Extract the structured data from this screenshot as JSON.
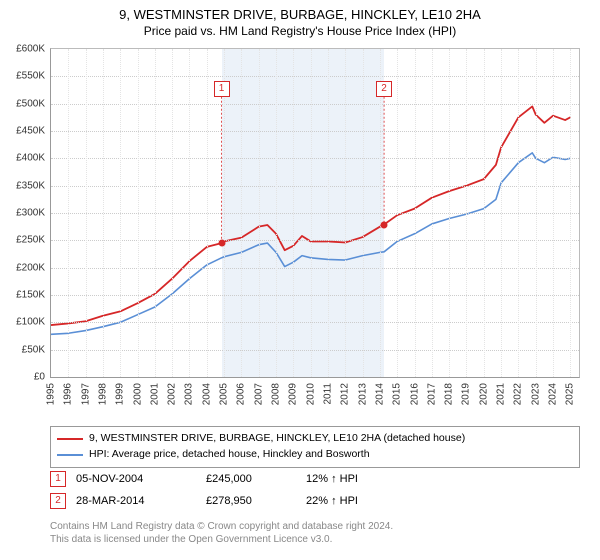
{
  "title": "9, WESTMINSTER DRIVE, BURBAGE, HINCKLEY, LE10 2HA",
  "subtitle": "Price paid vs. HM Land Registry's House Price Index (HPI)",
  "chart": {
    "type": "line",
    "background_color": "#ffffff",
    "grid_color": "#cccccc",
    "shaded_fill": "rgba(70,130,200,0.10)",
    "shaded_start": 2004.85,
    "shaded_end": 2014.24,
    "xlim": [
      1995,
      2025.5
    ],
    "ylim": [
      0,
      600000
    ],
    "ytick_step": 50000,
    "yticks": [
      {
        "v": 0,
        "label": "£0"
      },
      {
        "v": 50000,
        "label": "£50K"
      },
      {
        "v": 100000,
        "label": "£100K"
      },
      {
        "v": 150000,
        "label": "£150K"
      },
      {
        "v": 200000,
        "label": "£200K"
      },
      {
        "v": 250000,
        "label": "£250K"
      },
      {
        "v": 300000,
        "label": "£300K"
      },
      {
        "v": 350000,
        "label": "£350K"
      },
      {
        "v": 400000,
        "label": "£400K"
      },
      {
        "v": 450000,
        "label": "£450K"
      },
      {
        "v": 500000,
        "label": "£500K"
      },
      {
        "v": 550000,
        "label": "£550K"
      },
      {
        "v": 600000,
        "label": "£600K"
      }
    ],
    "xticks": [
      1995,
      1996,
      1997,
      1998,
      1999,
      2000,
      2001,
      2002,
      2003,
      2004,
      2005,
      2006,
      2007,
      2008,
      2009,
      2010,
      2011,
      2012,
      2013,
      2014,
      2015,
      2016,
      2017,
      2018,
      2019,
      2020,
      2021,
      2022,
      2023,
      2024,
      2025
    ],
    "series": [
      {
        "name": "price_paid",
        "color": "#d62728",
        "line_width": 1.8,
        "points": [
          [
            1995,
            95000
          ],
          [
            1996,
            98000
          ],
          [
            1997,
            102000
          ],
          [
            1998,
            112000
          ],
          [
            1999,
            120000
          ],
          [
            2000,
            135000
          ],
          [
            2001,
            152000
          ],
          [
            2002,
            180000
          ],
          [
            2003,
            212000
          ],
          [
            2004,
            238000
          ],
          [
            2004.85,
            245000
          ],
          [
            2005,
            248000
          ],
          [
            2006,
            255000
          ],
          [
            2007,
            275000
          ],
          [
            2007.5,
            278000
          ],
          [
            2008,
            262000
          ],
          [
            2008.5,
            232000
          ],
          [
            2009,
            240000
          ],
          [
            2009.5,
            258000
          ],
          [
            2010,
            248000
          ],
          [
            2011,
            248000
          ],
          [
            2012,
            246000
          ],
          [
            2013,
            256000
          ],
          [
            2014,
            275000
          ],
          [
            2014.24,
            278950
          ],
          [
            2015,
            296000
          ],
          [
            2016,
            308000
          ],
          [
            2017,
            328000
          ],
          [
            2018,
            340000
          ],
          [
            2019,
            350000
          ],
          [
            2020,
            362000
          ],
          [
            2020.7,
            388000
          ],
          [
            2021,
            420000
          ],
          [
            2022,
            475000
          ],
          [
            2022.8,
            495000
          ],
          [
            2023,
            480000
          ],
          [
            2023.5,
            465000
          ],
          [
            2024,
            478000
          ],
          [
            2024.7,
            470000
          ],
          [
            2025,
            475000
          ]
        ]
      },
      {
        "name": "hpi",
        "color": "#5a8fd6",
        "line_width": 1.6,
        "points": [
          [
            1995,
            78000
          ],
          [
            1996,
            80000
          ],
          [
            1997,
            85000
          ],
          [
            1998,
            92000
          ],
          [
            1999,
            100000
          ],
          [
            2000,
            114000
          ],
          [
            2001,
            128000
          ],
          [
            2002,
            152000
          ],
          [
            2003,
            180000
          ],
          [
            2004,
            205000
          ],
          [
            2004.85,
            218000
          ],
          [
            2005,
            220000
          ],
          [
            2006,
            228000
          ],
          [
            2007,
            242000
          ],
          [
            2007.5,
            245000
          ],
          [
            2008,
            228000
          ],
          [
            2008.5,
            202000
          ],
          [
            2009,
            210000
          ],
          [
            2009.5,
            222000
          ],
          [
            2010,
            218000
          ],
          [
            2011,
            215000
          ],
          [
            2012,
            214000
          ],
          [
            2013,
            222000
          ],
          [
            2014,
            228000
          ],
          [
            2014.24,
            229000
          ],
          [
            2015,
            248000
          ],
          [
            2016,
            262000
          ],
          [
            2017,
            280000
          ],
          [
            2018,
            290000
          ],
          [
            2019,
            298000
          ],
          [
            2020,
            308000
          ],
          [
            2020.7,
            325000
          ],
          [
            2021,
            355000
          ],
          [
            2022,
            392000
          ],
          [
            2022.8,
            410000
          ],
          [
            2023,
            400000
          ],
          [
            2023.5,
            392000
          ],
          [
            2024,
            402000
          ],
          [
            2024.7,
            398000
          ],
          [
            2025,
            400000
          ]
        ]
      }
    ],
    "markers": [
      {
        "n": "1",
        "x": 2004.85,
        "y": 245000,
        "label_y": 542000,
        "dot_color": "#d62728"
      },
      {
        "n": "2",
        "x": 2014.24,
        "y": 278950,
        "label_y": 542000,
        "dot_color": "#d62728"
      }
    ]
  },
  "legend": {
    "items": [
      {
        "color": "#d62728",
        "label": "9, WESTMINSTER DRIVE, BURBAGE, HINCKLEY, LE10 2HA (detached house)"
      },
      {
        "color": "#5a8fd6",
        "label": "HPI: Average price, detached house, Hinckley and Bosworth"
      }
    ]
  },
  "trades": [
    {
      "n": "1",
      "date": "05-NOV-2004",
      "price": "£245,000",
      "hpi": "12% ↑ HPI"
    },
    {
      "n": "2",
      "date": "28-MAR-2014",
      "price": "£278,950",
      "hpi": "22% ↑ HPI"
    }
  ],
  "footer": {
    "line1": "Contains HM Land Registry data © Crown copyright and database right 2024.",
    "line2": "This data is licensed under the Open Government Licence v3.0."
  }
}
